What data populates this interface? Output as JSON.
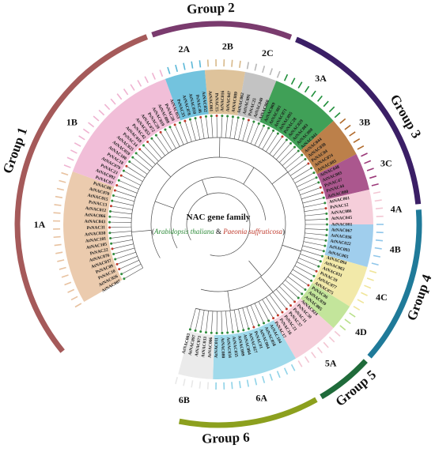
{
  "center": {
    "title": "NAC gene family",
    "species_a": "Arabidopsis thaliana",
    "conjunction": "&",
    "species_b": "Paeonia suffruticosa"
  },
  "colors": {
    "species_a": "#2e8b3a",
    "species_b": "#c0392b",
    "branch": "#4a4a4a"
  },
  "groups": [
    {
      "label": "Group 1",
      "color": "#a55a5a"
    },
    {
      "label": "Group 2",
      "color": "#7a3b6e"
    },
    {
      "label": "Group 3",
      "color": "#3b1f66"
    },
    {
      "label": "Group 4",
      "color": "#1f7a99"
    },
    {
      "label": "Group 5",
      "color": "#1f6b3a"
    },
    {
      "label": "Group 6",
      "color": "#8ca01e"
    }
  ],
  "subgroups": [
    {
      "label": "1A",
      "color": "#e8c2a0"
    },
    {
      "label": "1B",
      "color": "#efb3d1"
    },
    {
      "label": "2A",
      "color": "#5bb8d8"
    },
    {
      "label": "2B",
      "color": "#d8b98a"
    },
    {
      "label": "2C",
      "color": "#b8b8b8"
    },
    {
      "label": "3A",
      "color": "#1f8f3a"
    },
    {
      "label": "3B",
      "color": "#b06a2a"
    },
    {
      "label": "3C",
      "color": "#9c3a7a"
    },
    {
      "label": "4A",
      "color": "#f3c6d3"
    },
    {
      "label": "4B",
      "color": "#8fc6ea"
    },
    {
      "label": "4C",
      "color": "#f0e59a"
    },
    {
      "label": "4D",
      "color": "#b9e08a"
    },
    {
      "label": "5A",
      "color": "#f3c6d3"
    },
    {
      "label": "6A",
      "color": "#8fd3e8"
    },
    {
      "label": "6B",
      "color": "#e8e8e8"
    }
  ],
  "leaves": [
    "AtNAC007",
    "AtNAC026",
    "PsNAC10",
    "PsNAC09",
    "AtNAC037",
    "AtNAC076",
    "PsNAC22",
    "AtNAC105",
    "AtNAC101",
    "AtNAC030",
    "PsNAC31",
    "AtNAC043",
    "AtNAC066",
    "AtNAC012",
    "PsNAC13",
    "AtNAC015",
    "AtNAC070",
    "PsNAC08",
    "PsNAC07",
    "AtNAC092",
    "PsNAC23",
    "AtNAC079",
    "PsNAC18",
    "AtNAC100",
    "AtNAC059",
    "AtNAC025",
    "PsNAC14",
    "AtNAC018",
    "PsNAC42",
    "AtNAC055",
    "AtNAC072",
    "PsNAC29",
    "AtNAC019",
    "AtNAC088",
    "PsNAC20",
    "AtNAC053",
    "PsNAC35",
    "AtNAC078",
    "AtNAC050",
    "PsNAC46",
    "AtNAC052",
    "AtNAC061",
    "PsNAC15",
    "AtNAC016",
    "AtNAC047",
    "AtNAC089",
    "AtNAC062",
    "AtNAC091",
    "PsNAC25",
    "AtNAC040",
    "AtNAC060",
    "AtNAC069",
    "AtNAC001",
    "AtNAC071",
    "AtNAC095",
    "PsNAC28",
    "AtNAC029",
    "AtNAC083",
    "AtNAC008",
    "AtNAC041",
    "AtNAC044",
    "AtNAC038",
    "PsNAC04",
    "AtNAC074",
    "AtNAC085",
    "AtNAC048",
    "AtNAC003",
    "PsNAC47",
    "PsNAC44",
    "AtNAC090",
    "AtNAC061",
    "PsNAC12",
    "AtNAC086",
    "AtNAC045",
    "AtNAC081",
    "AtNAC067",
    "AtNAC036",
    "AtNAC022",
    "AtNAC093",
    "AtNAC065",
    "AtNAC094",
    "AtNAC063",
    "AtNAC031",
    "PsNAC19",
    "AtNAC077",
    "AtNAC075",
    "PsNAC06",
    "AtNAC039",
    "AtNAC005",
    "AtNAC024",
    "PsNAC30",
    "PsNAC11",
    "PsNAC37",
    "PsNAC21",
    "PsNAC16",
    "PsNAC17",
    "AtNAC104",
    "AtNAC058",
    "AtNAC064",
    "PsNAC01",
    "AtNAC027",
    "AtNAC084",
    "AtNAC099",
    "AtNAC035",
    "AtNAC034",
    "AtNAC080",
    "AtNAC011",
    "AtNAC006",
    "AtNAC033",
    "AtNAC073",
    "AtNAC097",
    "AtNAC003"
  ]
}
